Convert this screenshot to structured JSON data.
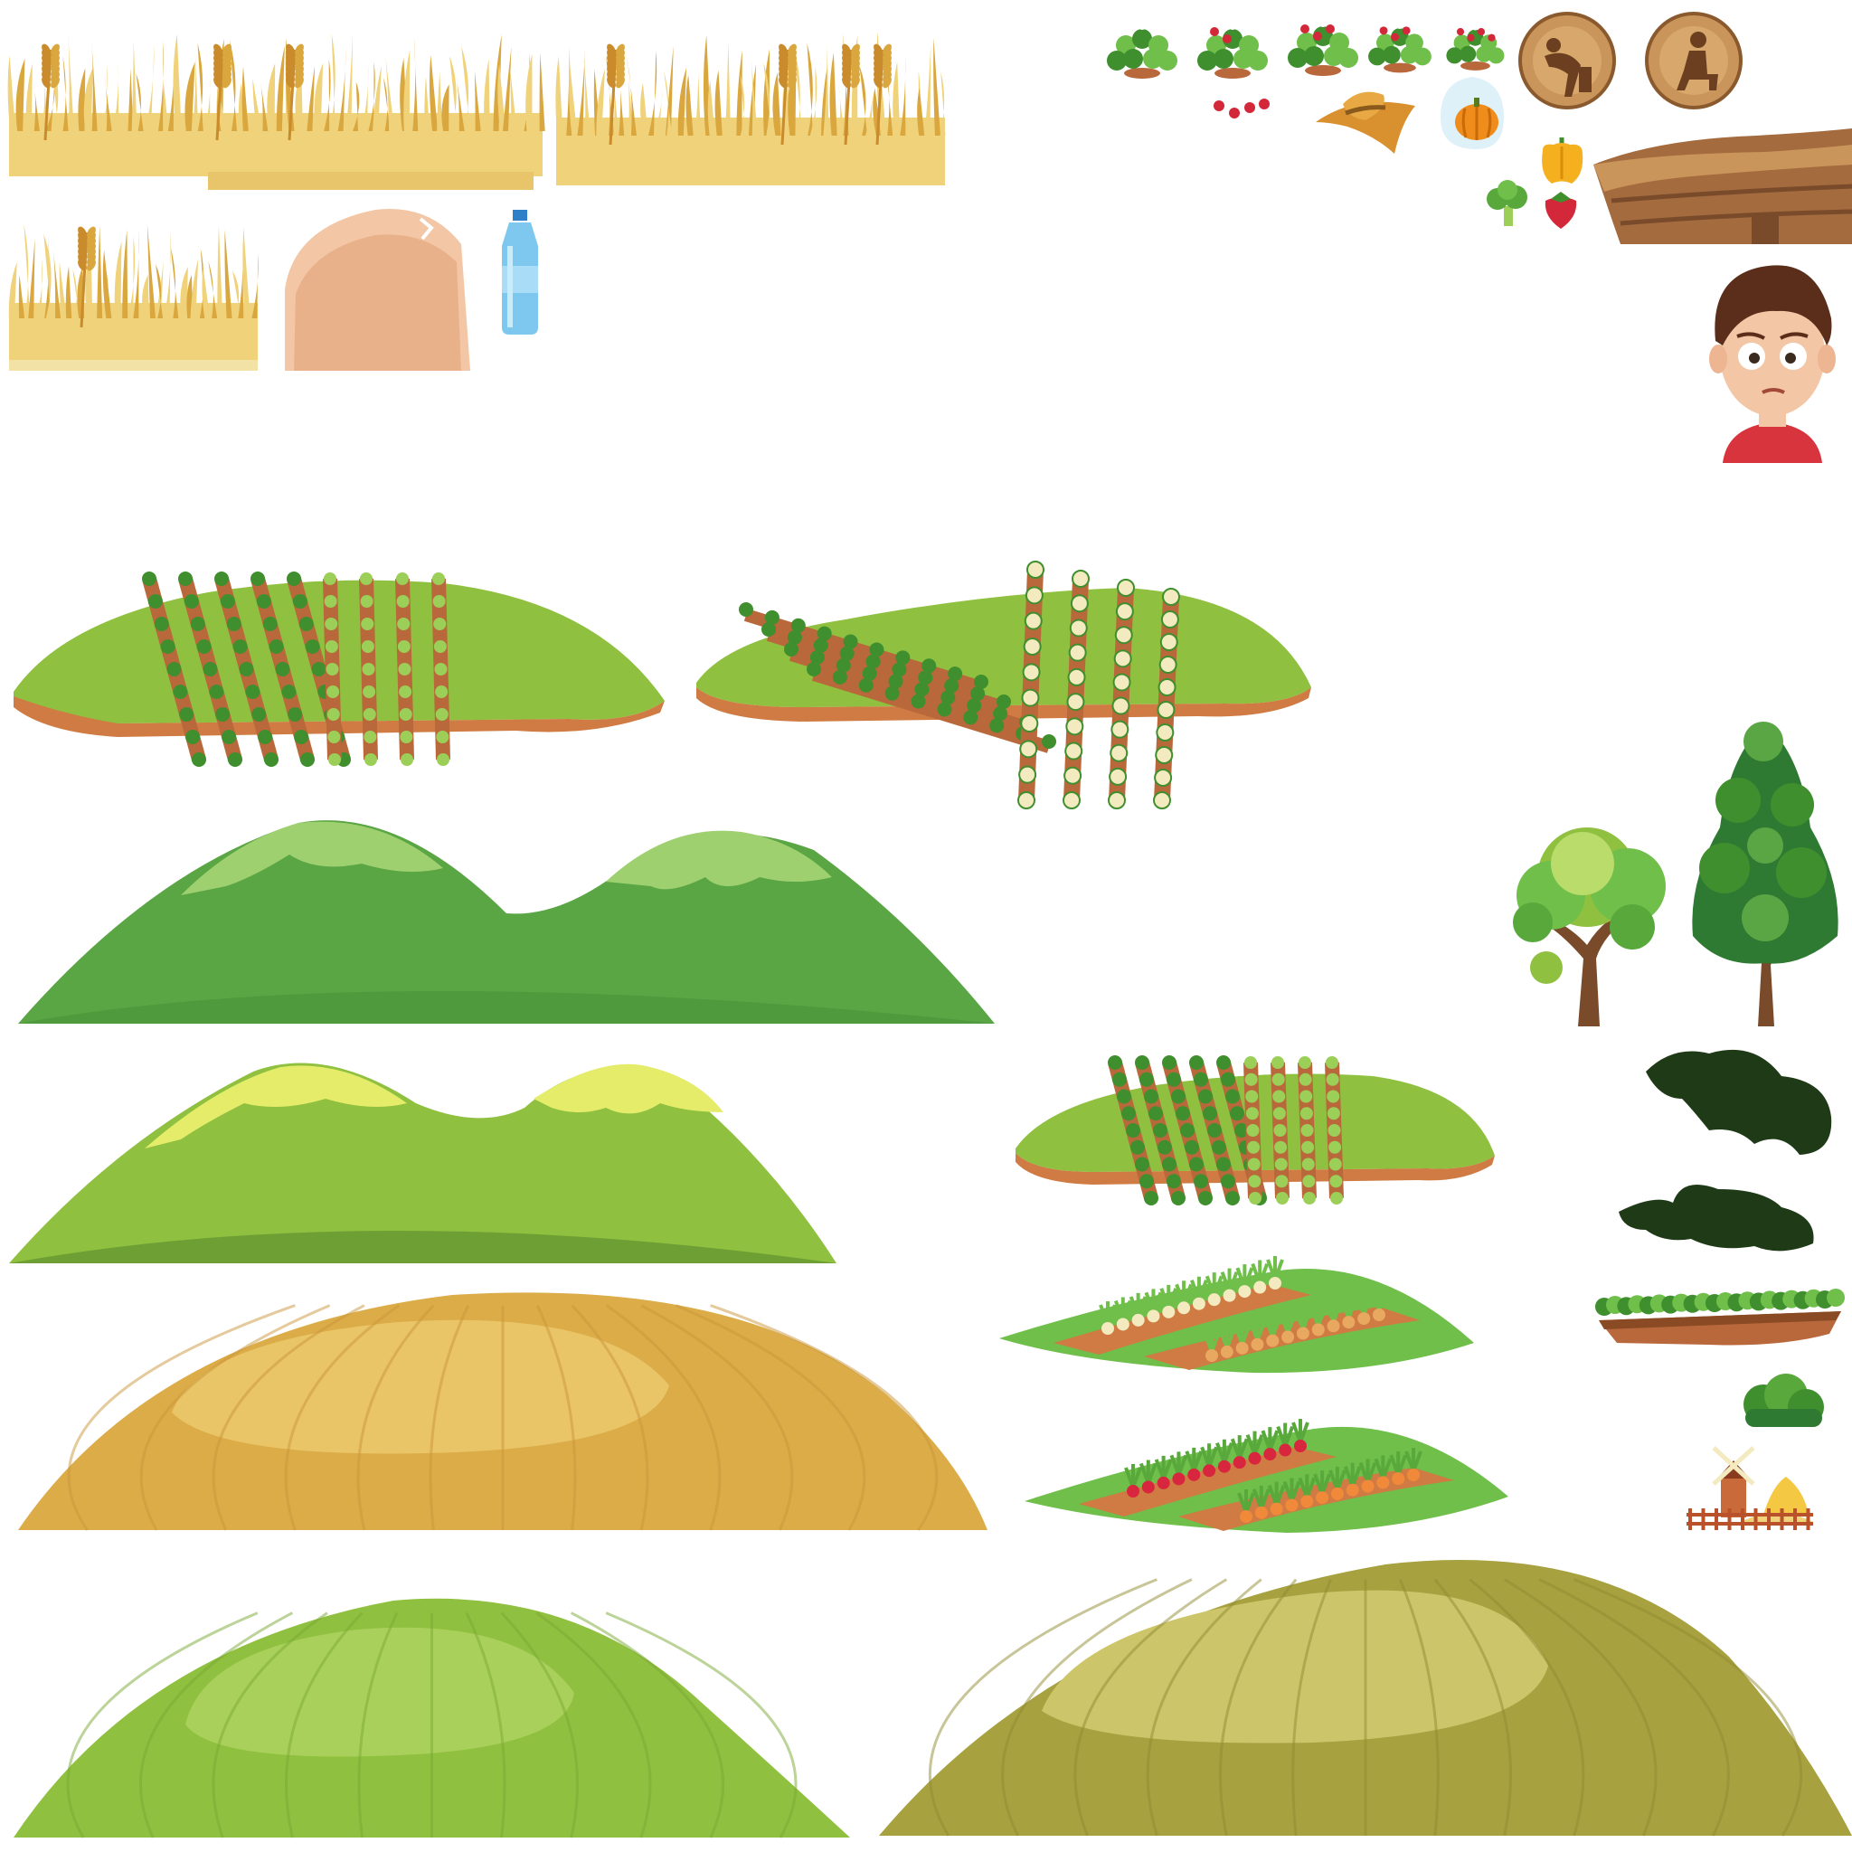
{
  "sprite_sheet": {
    "background": "#ffffff",
    "palette": {
      "wheat": "#f0d27a",
      "wheat_dark": "#d9a73e",
      "wheat_stalk": "#c98b2c",
      "skin": "#f3c6a5",
      "bottle": "#7ec8f0",
      "leaf": "#3f8f2e",
      "leaf_light": "#6fbf4a",
      "soil": "#b9683b",
      "soil_dark": "#8a4a24",
      "berry": "#d3283a",
      "wood": "#c9955a",
      "wood_dark": "#6b3f1f",
      "hill_green": "#5aa544",
      "hill_green_light": "#9fd070",
      "hill_yellowgreen": "#8fc03f",
      "hill_lime": "#e4ec6a",
      "hill_golden": "#dcac48",
      "hill_golden_light": "#e9c567",
      "hill_olive": "#a7a140",
      "hill_olive_light": "#cdc56a",
      "cabbage": "#9bcf57",
      "cauliflower": "#f3eac0",
      "carrot": "#f08a3a",
      "onion": "#e9a860",
      "radish": "#d8263f",
      "pumpkin": "#f08c1b",
      "pepper": "#f4b01e",
      "broccoli": "#58a83c",
      "tree_trunk": "#7a4b2a",
      "shadow": "#1f3a17",
      "boy_hair": "#5a2e1a",
      "boy_shirt": "#d8343d"
    },
    "icons": [
      "wheat-grass-strip-icon",
      "hay-bale-icon",
      "water-bottle-icon",
      "strawberry-plant-icon",
      "strawberries-icon",
      "straw-hat-icon",
      "pumpkin-bubble-icon",
      "bending-farmer-badge-icon",
      "sitting-farmer-badge-icon",
      "bell-pepper-icon",
      "broccoli-icon",
      "strawberry-icon",
      "wooden-hut-icon",
      "boy-portrait-icon",
      "terraced-hill-icon",
      "green-mountains-icon",
      "lime-mountains-icon",
      "golden-field-hill-icon",
      "green-field-hill-icon",
      "olive-field-hill-icon",
      "vegetable-field-icon",
      "round-tree-icon",
      "pine-tree-icon",
      "tree-shadow-icon",
      "lettuce-row-icon",
      "bush-icon",
      "windmill-farm-icon"
    ]
  }
}
